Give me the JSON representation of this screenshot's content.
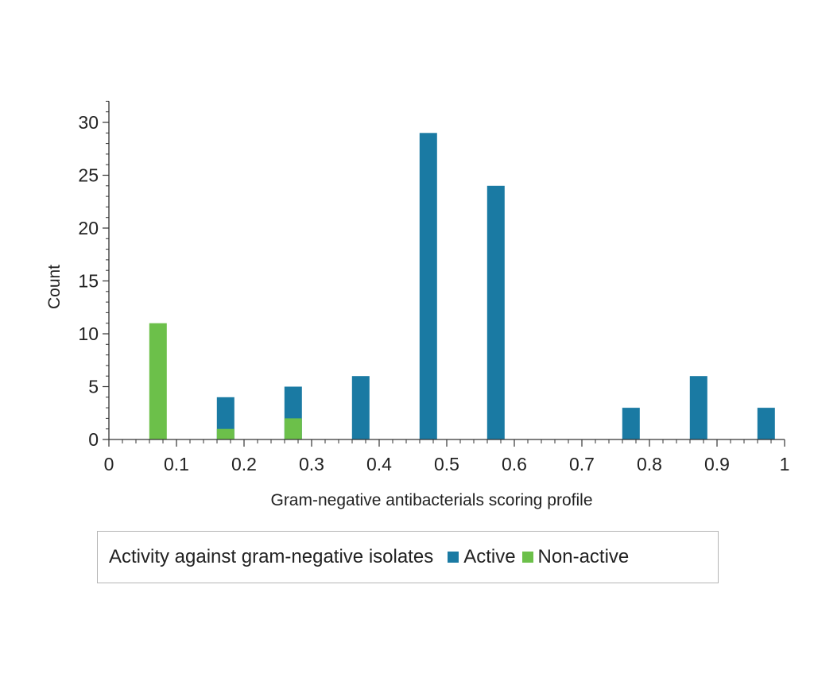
{
  "chart_data": {
    "type": "bar",
    "xlabel": "Gram-negative antibacterials scoring profile",
    "ylabel": "Count",
    "xlim": [
      0,
      1
    ],
    "ylim": [
      0,
      32
    ],
    "x_ticks": [
      "0",
      "0.1",
      "0.2",
      "0.3",
      "0.4",
      "0.5",
      "0.6",
      "0.7",
      "0.8",
      "0.9",
      "1"
    ],
    "y_ticks": [
      "0",
      "5",
      "10",
      "15",
      "20",
      "25",
      "30"
    ],
    "bin_width": 0.1,
    "series": [
      {
        "name": "Active",
        "color": "#1a7aa3",
        "points": [
          {
            "x": 0.1,
            "y": 4
          },
          {
            "x": 0.2,
            "y": 5
          },
          {
            "x": 0.3,
            "y": 6
          },
          {
            "x": 0.4,
            "y": 29
          },
          {
            "x": 0.5,
            "y": 24
          },
          {
            "x": 0.7,
            "y": 3
          },
          {
            "x": 0.8,
            "y": 6
          },
          {
            "x": 0.9,
            "y": 3
          }
        ]
      },
      {
        "name": "Non-active",
        "color": "#6cc04a",
        "points": [
          {
            "x": 0.0,
            "y": 11
          },
          {
            "x": 0.1,
            "y": 1
          },
          {
            "x": 0.2,
            "y": 2
          }
        ]
      }
    ],
    "legend": {
      "title": "Activity against gram-negative isolates",
      "position": "bottom"
    },
    "grid": false
  }
}
